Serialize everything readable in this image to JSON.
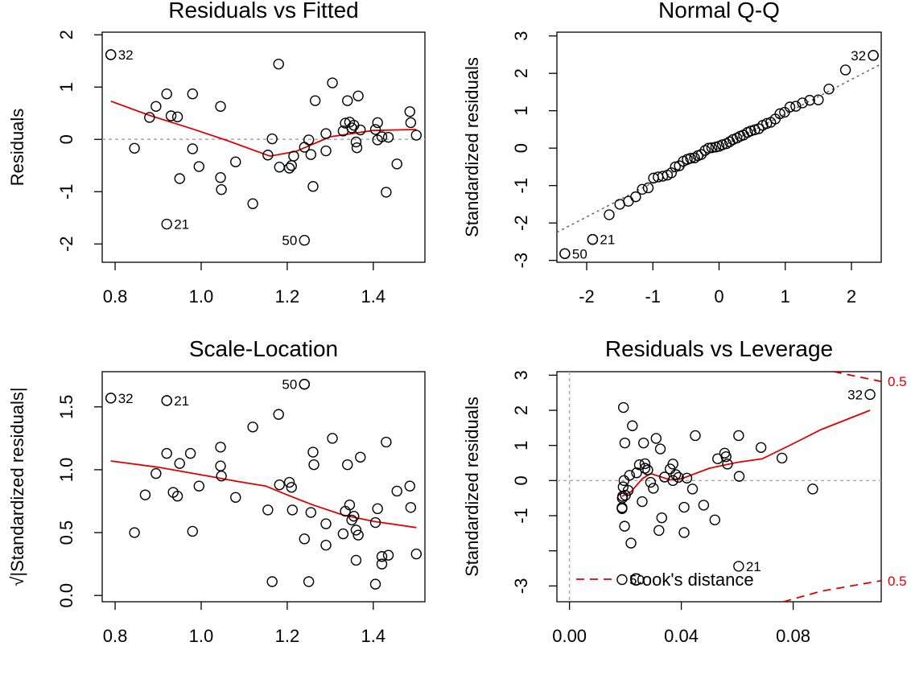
{
  "chart_data": [
    {
      "type": "scatter",
      "title": "Residuals vs Fitted",
      "xlabel": "",
      "ylabel": "Residuals",
      "xlim": [
        0.77,
        1.52
      ],
      "ylim": [
        -2.35,
        2.05
      ],
      "xticks": [
        0.8,
        1.0,
        1.2,
        1.4
      ],
      "xtick_labels": [
        "0.8",
        "1.0",
        "1.2",
        "1.4"
      ],
      "yticks": [
        -2,
        -1,
        0,
        1,
        2
      ],
      "ytick_labels": [
        "-2",
        "-1",
        "0",
        "1",
        "2"
      ],
      "ref_line": {
        "y": 0
      },
      "points": [
        [
          0.79,
          1.62
        ],
        [
          0.845,
          -0.17
        ],
        [
          0.88,
          0.42
        ],
        [
          0.895,
          0.63
        ],
        [
          0.92,
          0.87
        ],
        [
          0.93,
          0.45
        ],
        [
          0.945,
          0.43
        ],
        [
          0.95,
          -0.75
        ],
        [
          0.98,
          0.87
        ],
        [
          0.98,
          -0.18
        ],
        [
          0.995,
          -0.52
        ],
        [
          1.045,
          0.63
        ],
        [
          1.045,
          -0.73
        ],
        [
          1.047,
          -0.96
        ],
        [
          1.08,
          -0.43
        ],
        [
          1.12,
          -1.23
        ],
        [
          1.155,
          -0.3
        ],
        [
          1.165,
          0.01
        ],
        [
          1.18,
          1.44
        ],
        [
          1.182,
          -0.53
        ],
        [
          1.205,
          -0.55
        ],
        [
          1.21,
          -0.5
        ],
        [
          1.215,
          -0.32
        ],
        [
          1.24,
          -0.15
        ],
        [
          1.25,
          -0.01
        ],
        [
          1.255,
          -0.29
        ],
        [
          1.26,
          -0.9
        ],
        [
          1.265,
          0.74
        ],
        [
          1.29,
          0.11
        ],
        [
          1.29,
          -0.22
        ],
        [
          1.305,
          1.08
        ],
        [
          1.33,
          0.16
        ],
        [
          1.335,
          0.31
        ],
        [
          1.34,
          0.74
        ],
        [
          1.345,
          0.33
        ],
        [
          1.35,
          0.22
        ],
        [
          1.355,
          0.27
        ],
        [
          1.36,
          -0.05
        ],
        [
          1.362,
          -0.16
        ],
        [
          1.365,
          0.83
        ],
        [
          1.37,
          0.18
        ],
        [
          1.405,
          0.19
        ],
        [
          1.41,
          0.32
        ],
        [
          1.41,
          -0.01
        ],
        [
          1.42,
          0.05
        ],
        [
          1.43,
          -1.01
        ],
        [
          1.435,
          0.04
        ],
        [
          1.455,
          -0.47
        ],
        [
          1.485,
          0.53
        ],
        [
          1.487,
          0.32
        ],
        [
          1.5,
          0.08
        ]
      ],
      "labeled_points": [
        {
          "x": 0.79,
          "y": 1.62,
          "label": "32"
        },
        {
          "x": 0.92,
          "y": -1.62,
          "label": "21"
        },
        {
          "x": 1.24,
          "y": -1.93,
          "label": "50"
        }
      ],
      "smooth": [
        [
          0.79,
          0.73
        ],
        [
          0.88,
          0.46
        ],
        [
          0.98,
          0.2
        ],
        [
          1.06,
          -0.02
        ],
        [
          1.16,
          -0.32
        ],
        [
          1.22,
          -0.23
        ],
        [
          1.3,
          0.05
        ],
        [
          1.4,
          0.17
        ],
        [
          1.5,
          0.19
        ]
      ]
    },
    {
      "type": "scatter",
      "title": "Normal Q-Q",
      "xlabel": "",
      "ylabel": "Standardized residuals",
      "xlim": [
        -2.45,
        2.45
      ],
      "ylim": [
        -3.05,
        3.1
      ],
      "xticks": [
        -2,
        -1,
        0,
        1,
        2
      ],
      "xtick_labels": [
        "-2",
        "-1",
        "0",
        "1",
        "2"
      ],
      "yticks": [
        -3,
        -2,
        -1,
        0,
        1,
        2,
        3
      ],
      "ytick_labels": [
        "-3",
        "-2",
        "-1",
        "0",
        "1",
        "2",
        "3"
      ],
      "ref_line": {
        "x1": -2.45,
        "y1": -2.25,
        "x2": 2.45,
        "y2": 2.25
      },
      "points": [
        [
          -2.33,
          -2.82
        ],
        [
          -1.91,
          -2.44
        ],
        [
          -1.66,
          -1.78
        ],
        [
          -1.5,
          -1.5
        ],
        [
          -1.37,
          -1.42
        ],
        [
          -1.26,
          -1.3
        ],
        [
          -1.16,
          -1.1
        ],
        [
          -1.07,
          -1.06
        ],
        [
          -0.99,
          -0.8
        ],
        [
          -0.92,
          -0.77
        ],
        [
          -0.85,
          -0.75
        ],
        [
          -0.78,
          -0.72
        ],
        [
          -0.72,
          -0.66
        ],
        [
          -0.66,
          -0.5
        ],
        [
          -0.6,
          -0.47
        ],
        [
          -0.54,
          -0.35
        ],
        [
          -0.48,
          -0.3
        ],
        [
          -0.43,
          -0.27
        ],
        [
          -0.37,
          -0.26
        ],
        [
          -0.32,
          -0.2
        ],
        [
          -0.27,
          -0.17
        ],
        [
          -0.21,
          -0.06
        ],
        [
          -0.16,
          0.0
        ],
        [
          -0.11,
          0.01
        ],
        [
          -0.05,
          0.03
        ],
        [
          0.0,
          0.05
        ],
        [
          0.05,
          0.09
        ],
        [
          0.11,
          0.12
        ],
        [
          0.16,
          0.17
        ],
        [
          0.21,
          0.23
        ],
        [
          0.27,
          0.27
        ],
        [
          0.32,
          0.32
        ],
        [
          0.37,
          0.35
        ],
        [
          0.43,
          0.42
        ],
        [
          0.48,
          0.46
        ],
        [
          0.54,
          0.49
        ],
        [
          0.6,
          0.52
        ],
        [
          0.66,
          0.61
        ],
        [
          0.72,
          0.66
        ],
        [
          0.78,
          0.69
        ],
        [
          0.85,
          0.78
        ],
        [
          0.92,
          0.92
        ],
        [
          0.99,
          0.96
        ],
        [
          1.07,
          1.1
        ],
        [
          1.16,
          1.12
        ],
        [
          1.26,
          1.21
        ],
        [
          1.37,
          1.28
        ],
        [
          1.5,
          1.29
        ],
        [
          1.66,
          1.58
        ],
        [
          1.91,
          2.09
        ],
        [
          2.33,
          2.48
        ]
      ],
      "labeled_points": [
        {
          "x": 2.33,
          "y": 2.48,
          "label": "32"
        },
        {
          "x": -1.91,
          "y": -2.44,
          "label": "21"
        },
        {
          "x": -2.33,
          "y": -2.82,
          "label": "50"
        }
      ]
    },
    {
      "type": "scatter",
      "title": "Scale-Location",
      "xlabel": "",
      "ylabel": "√|Standardized residuals|",
      "xlim": [
        0.77,
        1.52
      ],
      "ylim": [
        -0.05,
        1.78
      ],
      "xticks": [
        0.8,
        1.0,
        1.2,
        1.4
      ],
      "xtick_labels": [
        "0.8",
        "1.0",
        "1.2",
        "1.4"
      ],
      "yticks": [
        0.0,
        0.5,
        1.0,
        1.5
      ],
      "ytick_labels": [
        "0.0",
        "0.5",
        "1.0",
        "1.5"
      ],
      "points": [
        [
          0.79,
          1.57
        ],
        [
          0.845,
          0.5
        ],
        [
          0.87,
          0.8
        ],
        [
          0.895,
          0.97
        ],
        [
          0.92,
          1.55
        ],
        [
          0.92,
          1.13
        ],
        [
          0.935,
          0.82
        ],
        [
          0.945,
          0.79
        ],
        [
          0.95,
          1.05
        ],
        [
          0.975,
          1.13
        ],
        [
          0.98,
          0.51
        ],
        [
          0.995,
          0.87
        ],
        [
          1.045,
          1.18
        ],
        [
          1.045,
          1.03
        ],
        [
          1.047,
          0.95
        ],
        [
          1.08,
          0.78
        ],
        [
          1.12,
          1.34
        ],
        [
          1.155,
          0.68
        ],
        [
          1.165,
          0.11
        ],
        [
          1.18,
          1.44
        ],
        [
          1.182,
          0.88
        ],
        [
          1.205,
          0.9
        ],
        [
          1.21,
          0.86
        ],
        [
          1.212,
          0.68
        ],
        [
          1.24,
          0.45
        ],
        [
          1.24,
          1.68
        ],
        [
          1.25,
          0.11
        ],
        [
          1.255,
          0.66
        ],
        [
          1.26,
          1.14
        ],
        [
          1.262,
          1.04
        ],
        [
          1.29,
          0.4
        ],
        [
          1.29,
          0.57
        ],
        [
          1.305,
          1.25
        ],
        [
          1.33,
          0.49
        ],
        [
          1.335,
          0.67
        ],
        [
          1.34,
          1.04
        ],
        [
          1.345,
          0.72
        ],
        [
          1.35,
          0.6
        ],
        [
          1.355,
          0.63
        ],
        [
          1.36,
          0.52
        ],
        [
          1.36,
          0.28
        ],
        [
          1.365,
          0.48
        ],
        [
          1.37,
          1.1
        ],
        [
          1.405,
          0.09
        ],
        [
          1.405,
          0.58
        ],
        [
          1.41,
          0.69
        ],
        [
          1.42,
          0.31
        ],
        [
          1.42,
          0.25
        ],
        [
          1.43,
          1.22
        ],
        [
          1.435,
          0.32
        ],
        [
          1.455,
          0.83
        ],
        [
          1.485,
          0.87
        ],
        [
          1.487,
          0.7
        ],
        [
          1.5,
          0.33
        ]
      ],
      "labeled_points": [
        {
          "x": 0.79,
          "y": 1.57,
          "label": "32"
        },
        {
          "x": 0.92,
          "y": 1.55,
          "label": "21"
        },
        {
          "x": 1.24,
          "y": 1.68,
          "label": "50"
        }
      ],
      "smooth": [
        [
          0.79,
          1.07
        ],
        [
          0.9,
          1.02
        ],
        [
          1.0,
          0.96
        ],
        [
          1.08,
          0.91
        ],
        [
          1.15,
          0.87
        ],
        [
          1.2,
          0.8
        ],
        [
          1.26,
          0.72
        ],
        [
          1.33,
          0.64
        ],
        [
          1.4,
          0.59
        ],
        [
          1.5,
          0.54
        ]
      ]
    },
    {
      "type": "scatter",
      "title": "Residuals vs Leverage",
      "xlabel": "",
      "ylabel": "Standardized residuals",
      "xlim": [
        -0.0045,
        0.1115
      ],
      "ylim": [
        -3.45,
        3.1
      ],
      "xticks": [
        0.0,
        0.04,
        0.08
      ],
      "xtick_labels": [
        "0.00",
        "0.04",
        "0.08"
      ],
      "yticks": [
        -3,
        -2,
        -1,
        0,
        1,
        2,
        3
      ],
      "ytick_labels": [
        "-3",
        "",
        "-1",
        "0",
        "1",
        "2",
        "3"
      ],
      "ref_line": {
        "x": 0,
        "y": 0
      },
      "points": [
        [
          0.0188,
          -0.8
        ],
        [
          0.0188,
          -0.77
        ],
        [
          0.0189,
          -0.5
        ],
        [
          0.019,
          -0.45
        ],
        [
          0.0192,
          -0.18
        ],
        [
          0.0193,
          2.08
        ],
        [
          0.0195,
          0.0
        ],
        [
          0.0197,
          -1.3
        ],
        [
          0.0198,
          1.07
        ],
        [
          0.02,
          -0.42
        ],
        [
          0.021,
          -0.28
        ],
        [
          0.0215,
          0.15
        ],
        [
          0.022,
          -1.78
        ],
        [
          0.0225,
          1.56
        ],
        [
          0.024,
          0.22
        ],
        [
          0.025,
          0.45
        ],
        [
          0.026,
          -0.6
        ],
        [
          0.0265,
          1.07
        ],
        [
          0.027,
          0.48
        ],
        [
          0.027,
          0.35
        ],
        [
          0.028,
          0.3
        ],
        [
          0.029,
          -0.05
        ],
        [
          0.03,
          -0.22
        ],
        [
          0.031,
          1.2
        ],
        [
          0.032,
          -1.42
        ],
        [
          0.0325,
          0.9
        ],
        [
          0.033,
          -1.06
        ],
        [
          0.034,
          0.1
        ],
        [
          0.036,
          0.33
        ],
        [
          0.037,
          0.47
        ],
        [
          0.037,
          0.0
        ],
        [
          0.038,
          0.17
        ],
        [
          0.039,
          0.09
        ],
        [
          0.041,
          -0.76
        ],
        [
          0.041,
          -1.48
        ],
        [
          0.042,
          0.07
        ],
        [
          0.044,
          -0.24
        ],
        [
          0.045,
          1.28
        ],
        [
          0.048,
          -0.7
        ],
        [
          0.052,
          -1.12
        ],
        [
          0.053,
          0.62
        ],
        [
          0.0555,
          0.78
        ],
        [
          0.056,
          0.68
        ],
        [
          0.0565,
          0.47
        ],
        [
          0.0605,
          1.28
        ],
        [
          0.0607,
          0.12
        ],
        [
          0.0685,
          0.94
        ],
        [
          0.076,
          0.64
        ],
        [
          0.087,
          -0.24
        ]
      ],
      "labeled_points": [
        {
          "x": 0.1075,
          "y": 2.45,
          "label": "32"
        },
        {
          "x": 0.0605,
          "y": -2.44,
          "label": "21"
        },
        {
          "x": 0.0188,
          "y": -2.82,
          "label": "50"
        }
      ],
      "smooth": [
        [
          0.0188,
          -0.45
        ],
        [
          0.022,
          -0.32
        ],
        [
          0.026,
          0.05
        ],
        [
          0.029,
          0.2
        ],
        [
          0.036,
          0.02
        ],
        [
          0.04,
          0.05
        ],
        [
          0.05,
          0.35
        ],
        [
          0.06,
          0.52
        ],
        [
          0.069,
          0.62
        ],
        [
          0.08,
          1.05
        ],
        [
          0.09,
          1.45
        ],
        [
          0.1075,
          2.0
        ]
      ],
      "cooks_contours": [
        {
          "label": "0.5",
          "points": [
            [
              0.0945,
              3.1
            ],
            [
              0.1115,
              2.82
            ]
          ]
        },
        {
          "label": "0.5",
          "points": [
            [
              0.0765,
              -3.45
            ],
            [
              0.09,
              -3.15
            ],
            [
              0.1115,
              -2.85
            ]
          ]
        }
      ],
      "legend": {
        "label": "Cook's distance",
        "position": "bottom-left"
      }
    }
  ]
}
